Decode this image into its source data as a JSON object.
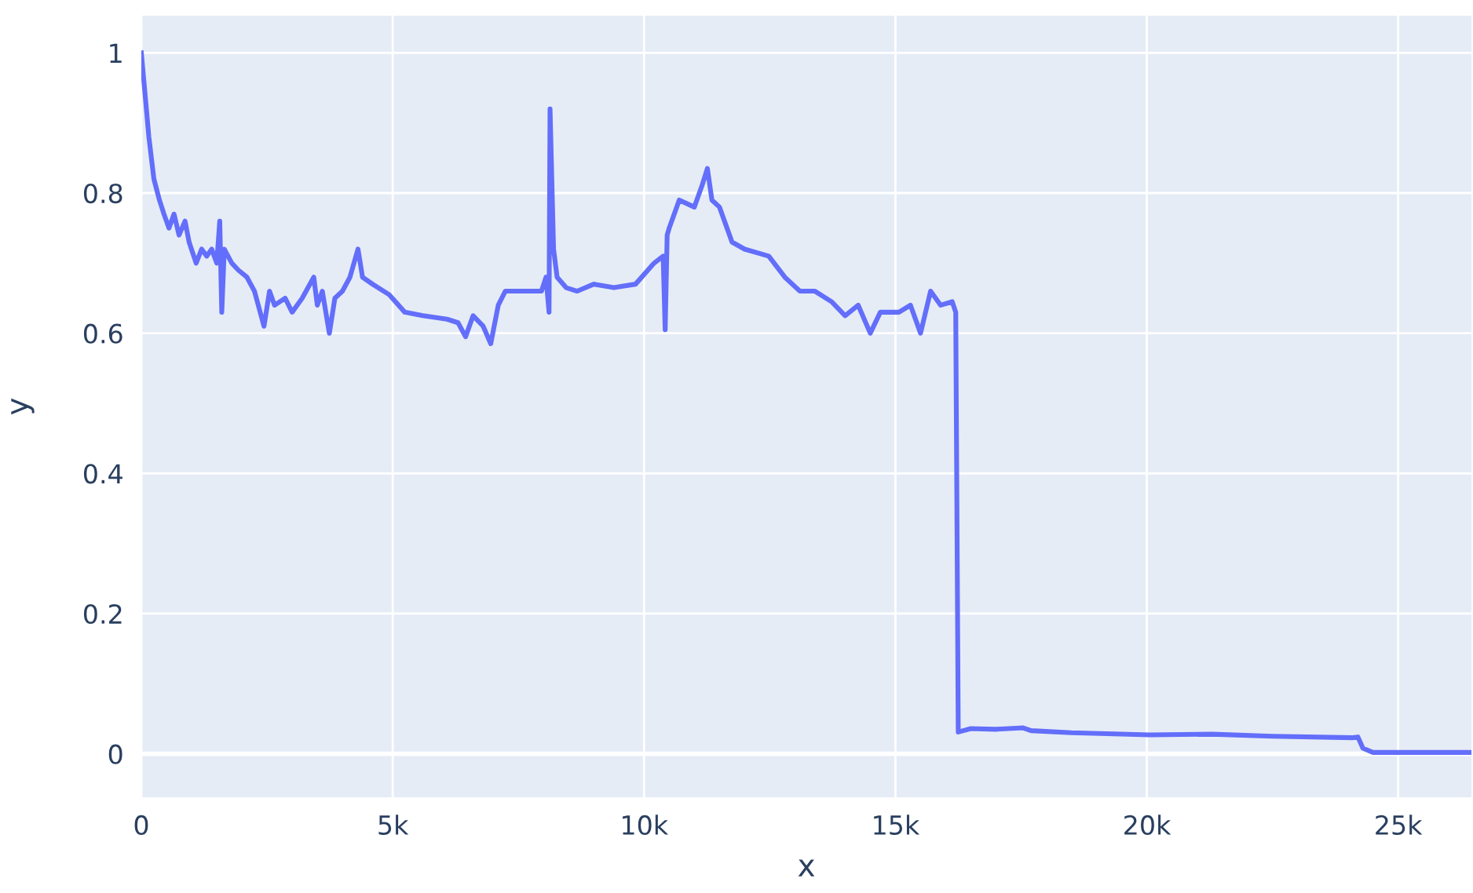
{
  "chart_data": {
    "type": "line",
    "xlabel": "x",
    "ylabel": "y",
    "x": [
      0,
      50,
      150,
      250,
      360,
      450,
      550,
      650,
      750,
      870,
      950,
      1090,
      1200,
      1300,
      1400,
      1500,
      1560,
      1600,
      1650,
      1800,
      1930,
      2100,
      2250,
      2440,
      2550,
      2650,
      2860,
      3000,
      3200,
      3430,
      3500,
      3600,
      3740,
      3850,
      4000,
      4150,
      4310,
      4400,
      4600,
      4930,
      5240,
      5600,
      6080,
      6300,
      6450,
      6600,
      6800,
      6950,
      7100,
      7240,
      7500,
      7960,
      8050,
      8110,
      8130,
      8200,
      8270,
      8450,
      8670,
      9000,
      9400,
      9830,
      10200,
      10380,
      10420,
      10460,
      10500,
      10700,
      11000,
      11150,
      11260,
      11350,
      11500,
      11750,
      12000,
      12480,
      12800,
      13100,
      13400,
      13730,
      14000,
      14260,
      14500,
      14700,
      15070,
      15300,
      15500,
      15700,
      15900,
      16130,
      16200,
      16250,
      16500,
      17000,
      17540,
      17700,
      18500,
      20060,
      21300,
      22500,
      24100,
      24200,
      24300,
      24500,
      25500,
      26460
    ],
    "series": [
      {
        "color": "#636efa",
        "values": [
          1.0,
          0.96,
          0.88,
          0.82,
          0.79,
          0.77,
          0.75,
          0.77,
          0.74,
          0.76,
          0.73,
          0.7,
          0.72,
          0.71,
          0.72,
          0.7,
          0.76,
          0.63,
          0.72,
          0.7,
          0.69,
          0.68,
          0.66,
          0.61,
          0.66,
          0.64,
          0.65,
          0.63,
          0.65,
          0.68,
          0.64,
          0.66,
          0.6,
          0.65,
          0.66,
          0.68,
          0.72,
          0.68,
          0.67,
          0.655,
          0.63,
          0.625,
          0.62,
          0.615,
          0.595,
          0.625,
          0.61,
          0.585,
          0.64,
          0.66,
          0.66,
          0.66,
          0.68,
          0.63,
          0.92,
          0.72,
          0.68,
          0.665,
          0.66,
          0.67,
          0.665,
          0.67,
          0.7,
          0.71,
          0.605,
          0.74,
          0.75,
          0.79,
          0.78,
          0.81,
          0.835,
          0.79,
          0.78,
          0.73,
          0.72,
          0.71,
          0.68,
          0.66,
          0.66,
          0.645,
          0.625,
          0.64,
          0.6,
          0.63,
          0.63,
          0.64,
          0.6,
          0.66,
          0.64,
          0.645,
          0.63,
          0.031,
          0.036,
          0.035,
          0.037,
          0.033,
          0.03,
          0.027,
          0.028,
          0.025,
          0.023,
          0.024,
          0.008,
          0.002,
          0.002,
          0.002
        ]
      }
    ],
    "xlim": [
      0,
      26460
    ],
    "ylim": [
      -0.062,
      1.053
    ],
    "xticks": [
      0,
      {
        "value": 5000,
        "label": "5k"
      },
      {
        "value": 10000,
        "label": "10k"
      },
      {
        "value": 15000,
        "label": "15k"
      },
      {
        "value": 20000,
        "label": "20k"
      },
      {
        "value": 25000,
        "label": "25k"
      }
    ],
    "yticks": [
      0,
      0.2,
      0.4,
      0.6,
      0.8,
      1
    ],
    "grid": true,
    "legend": false,
    "marker": "none",
    "line_style": "solid"
  }
}
